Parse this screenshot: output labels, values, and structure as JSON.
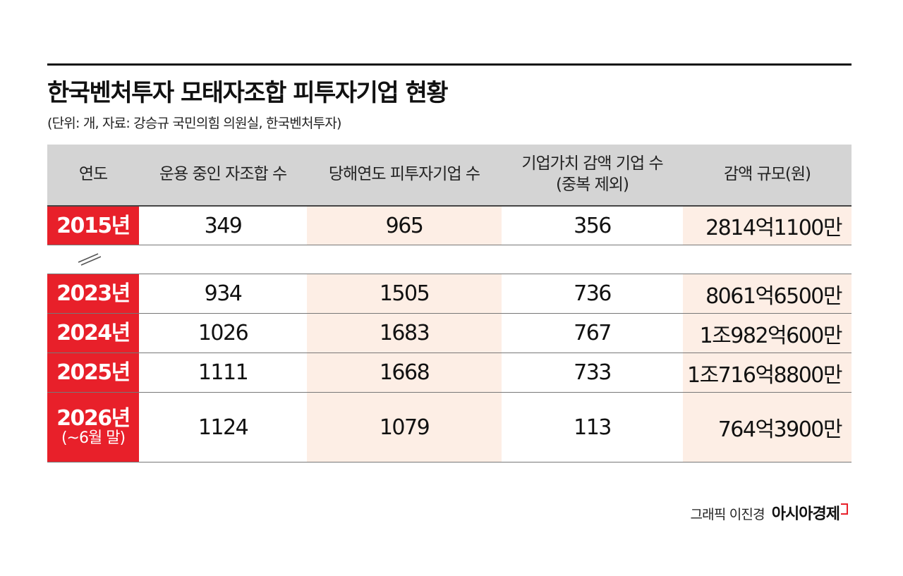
{
  "title": "한국벤처투자 모태자조합 피투자기업 현황",
  "subtitle": "(단위: 개, 자료: 강승규 국민의힘 의원실, 한국벤처투자)",
  "colors": {
    "accent_red": "#e8202a",
    "header_gray": "#d4d4d4",
    "shade_peach": "#fdeee5"
  },
  "chart_data": {
    "type": "table",
    "columns": [
      "연도",
      "운용 중인 자조합 수",
      "당해연도 피투자기업 수",
      "기업가치 감액 기업 수\n(중복 제외)",
      "감액 규모(원)"
    ],
    "rows": [
      {
        "year": "2015년",
        "note": "",
        "funds": "349",
        "companies": "965",
        "impaired": "356",
        "amount": "2814억1100만"
      },
      {
        "year": "2023년",
        "note": "",
        "funds": "934",
        "companies": "1505",
        "impaired": "736",
        "amount": "8061억6500만"
      },
      {
        "year": "2024년",
        "note": "",
        "funds": "1026",
        "companies": "1683",
        "impaired": "767",
        "amount": "1조982억600만"
      },
      {
        "year": "2025년",
        "note": "",
        "funds": "1111",
        "companies": "1668",
        "impaired": "733",
        "amount": "1조716억8800만"
      },
      {
        "year": "2026년",
        "note": "(~6월 말)",
        "funds": "1124",
        "companies": "1079",
        "impaired": "113",
        "amount": "764억3900만"
      }
    ],
    "break_after_row": 0
  },
  "credit": {
    "artist": "그래픽 이진경",
    "brand": "아시아경제"
  }
}
